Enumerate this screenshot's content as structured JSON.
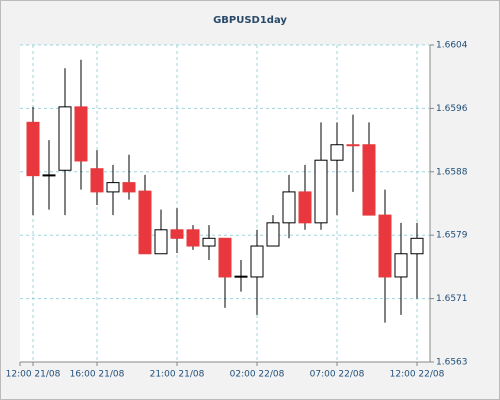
{
  "chart_data": {
    "type": "candlestick",
    "title": "GBPUSD1day",
    "categories": [
      "12:00 21/08",
      null,
      null,
      null,
      "16:00 21/08",
      null,
      null,
      null,
      null,
      "21:00 21/08",
      null,
      null,
      null,
      null,
      "02:00 22/08",
      null,
      null,
      null,
      null,
      "07:00 22/08",
      null,
      null,
      null,
      null,
      "12:00 22/08"
    ],
    "open": [
      1.6594,
      1.65871,
      1.65878,
      1.6596,
      1.6588,
      1.6585,
      1.65862,
      1.65851,
      1.6577,
      1.65801,
      1.65801,
      1.6578,
      1.6579,
      1.6574,
      1.6574,
      1.6578,
      1.6581,
      1.6585,
      1.6581,
      1.65891,
      1.65911,
      1.65911,
      1.6582,
      1.6574,
      1.6577
    ],
    "high": [
      1.6596,
      1.65917,
      1.6601,
      1.66021,
      1.65904,
      1.65885,
      1.65898,
      1.65872,
      1.65827,
      1.65829,
      1.65807,
      1.65807,
      1.6579,
      1.65762,
      1.65801,
      1.6582,
      1.65872,
      1.65885,
      1.6594,
      1.6594,
      1.6595,
      1.6594,
      1.65853,
      1.6581,
      1.6581
    ],
    "low": [
      1.6582,
      1.65827,
      1.6582,
      1.65853,
      1.65833,
      1.6582,
      1.6584,
      1.6577,
      1.6577,
      1.65771,
      1.65775,
      1.65762,
      1.657,
      1.65721,
      1.65691,
      1.6578,
      1.6579,
      1.65801,
      1.65801,
      1.6582,
      1.6585,
      1.6582,
      1.65681,
      1.65691,
      1.65712
    ],
    "close": [
      1.65871,
      1.65872,
      1.6596,
      1.6589,
      1.6585,
      1.65862,
      1.6585,
      1.6577,
      1.65801,
      1.6579,
      1.6578,
      1.6579,
      1.6574,
      1.65741,
      1.6578,
      1.6581,
      1.6585,
      1.6581,
      1.65891,
      1.65911,
      1.6591,
      1.6582,
      1.6574,
      1.6577,
      1.6579
    ],
    "up_color": "#ffffff",
    "down_color": "#e8383d",
    "ylim": [
      1.6563,
      1.6604
    ],
    "yticks": [
      {
        "value": 1.6563,
        "label": "1.6563"
      },
      {
        "value": 1.65712,
        "label": "1.6571"
      },
      {
        "value": 1.65794,
        "label": "1.6579"
      },
      {
        "value": 1.65876,
        "label": "1.6588"
      },
      {
        "value": 1.65958,
        "label": "1.6596"
      },
      {
        "value": 1.6604,
        "label": "1.6604"
      }
    ],
    "grid": true
  }
}
